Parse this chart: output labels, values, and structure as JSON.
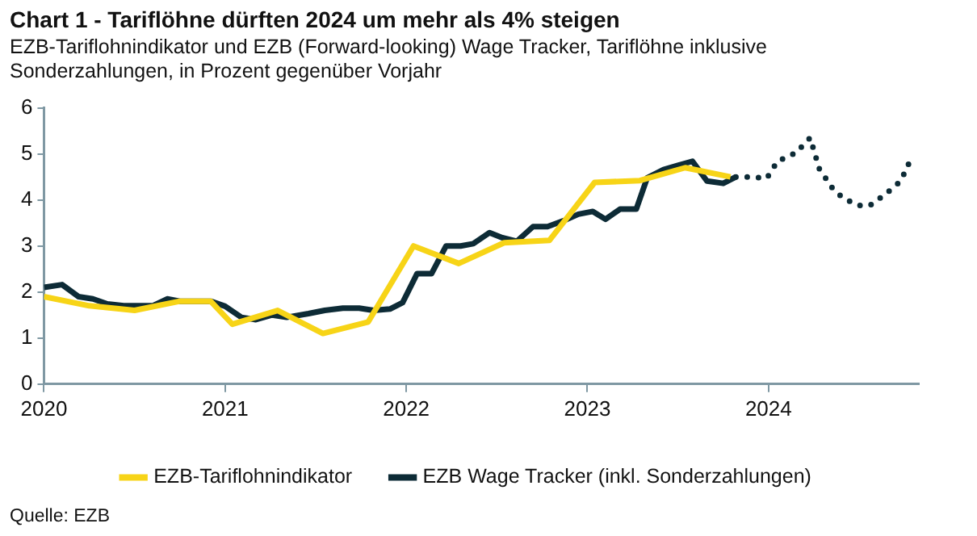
{
  "chart_data": {
    "type": "line",
    "title": "Chart 1 - Tariflöhne dürften 2024 um mehr als 4% steigen",
    "subtitle": "EZB-Tariflohnindikator und EZB (Forward-looking) Wage Tracker, Tariflöhne inklusive Sonderzahlungen, in Prozent gegenüber Vorjahr",
    "annotations": [
      "Quelle: EZB"
    ],
    "xlim": [
      2020,
      2024.83
    ],
    "xticks": [
      2020,
      2021,
      2022,
      2023,
      2024
    ],
    "ylim": [
      0,
      6
    ],
    "yticks": [
      0,
      1,
      2,
      3,
      4,
      5,
      6
    ],
    "grid": false,
    "legend": "bottom",
    "marker": "none",
    "series": [
      {
        "name": "EZB-Tariflohnindikator",
        "color": "#f7d417",
        "line_style": "solid",
        "x": [
          2020.0,
          2020.25,
          2020.5,
          2020.75,
          2020.92,
          2021.04,
          2021.29,
          2021.54,
          2021.79,
          2022.04,
          2022.29,
          2022.54,
          2022.79,
          2023.04,
          2023.29,
          2023.54,
          2023.79
        ],
        "values": [
          1.9,
          1.7,
          1.6,
          1.8,
          1.8,
          1.3,
          1.6,
          1.1,
          1.35,
          3.0,
          2.62,
          3.07,
          3.12,
          4.38,
          4.42,
          4.7,
          4.5
        ]
      },
      {
        "name": "EZB Wage Tracker (inkl. Sonderzahlungen)",
        "color": "#0d2b36",
        "line_style": "solid",
        "x": [
          2020.0,
          2020.1,
          2020.19,
          2020.27,
          2020.35,
          2020.44,
          2020.6,
          2020.68,
          2020.75,
          2020.92,
          2021.0,
          2021.09,
          2021.17,
          2021.26,
          2021.34,
          2021.46,
          2021.55,
          2021.65,
          2021.74,
          2021.82,
          2021.91,
          2021.98,
          2022.06,
          2022.14,
          2022.22,
          2022.3,
          2022.37,
          2022.46,
          2022.53,
          2022.61,
          2022.7,
          2022.78,
          2022.87,
          2022.95,
          2023.03,
          2023.1,
          2023.18,
          2023.27,
          2023.33,
          2023.42,
          2023.5,
          2023.58,
          2023.66,
          2023.75,
          2023.82
        ],
        "values": [
          2.1,
          2.16,
          1.9,
          1.85,
          1.74,
          1.7,
          1.7,
          1.85,
          1.8,
          1.8,
          1.69,
          1.45,
          1.4,
          1.5,
          1.45,
          1.53,
          1.6,
          1.65,
          1.65,
          1.6,
          1.63,
          1.77,
          2.4,
          2.4,
          3.0,
          3.0,
          3.05,
          3.29,
          3.18,
          3.1,
          3.42,
          3.42,
          3.55,
          3.69,
          3.75,
          3.58,
          3.8,
          3.8,
          4.48,
          4.66,
          4.75,
          4.84,
          4.41,
          4.36,
          4.5
        ]
      },
      {
        "color": "#0d2b36",
        "line_style": "dotted",
        "x": [
          2023.82,
          2023.9,
          2023.99,
          2024.05,
          2024.15,
          2024.23,
          2024.28,
          2024.35,
          2024.41,
          2024.5,
          2024.56,
          2024.65,
          2024.73,
          2024.78
        ],
        "values": [
          4.5,
          4.5,
          4.47,
          4.84,
          5.02,
          5.35,
          4.68,
          4.27,
          4.04,
          3.88,
          3.88,
          4.14,
          4.41,
          4.84
        ]
      }
    ]
  }
}
